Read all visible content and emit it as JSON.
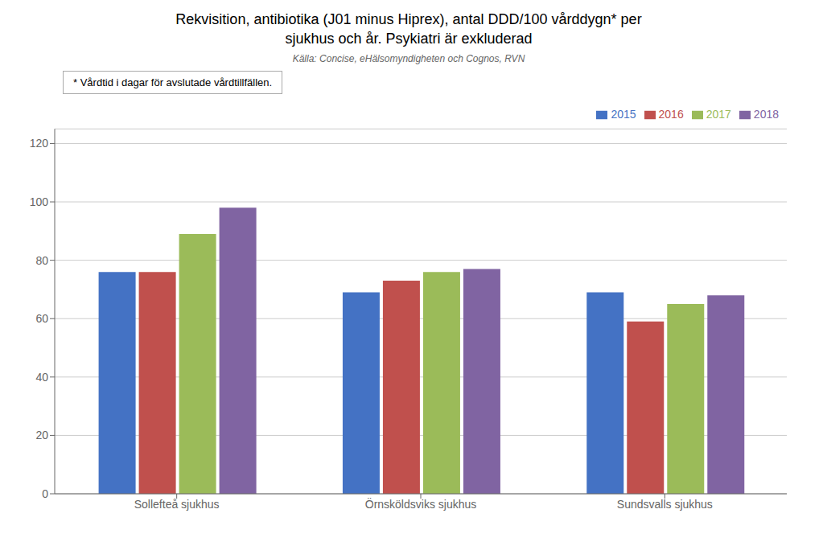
{
  "chart_data": {
    "type": "bar",
    "title": "Rekvisition, antibiotika (J01 minus Hiprex), antal DDD/100 vårddygn* per\nsjukhus och år. Psykiatri är exkluderad",
    "subtitle": "Källa: Concise, eHälsomyndigheten och Cognos, RVN",
    "annotations": [
      "* Vårdtid i dagar för avslutade vårdtillfällen."
    ],
    "categories": [
      "Sollefteå sjukhus",
      "Örnsköldsviks sjukhus",
      "Sundsvalls sjukhus"
    ],
    "series": [
      {
        "name": "2015",
        "color": "#4472C4",
        "values": [
          76,
          69,
          69
        ]
      },
      {
        "name": "2016",
        "color": "#C0504D",
        "values": [
          76,
          73,
          59
        ]
      },
      {
        "name": "2017",
        "color": "#9BBB59",
        "values": [
          89,
          76,
          65
        ]
      },
      {
        "name": "2018",
        "color": "#8064A2",
        "values": [
          98,
          77,
          68
        ]
      }
    ],
    "ylim": [
      0,
      125
    ],
    "yticks": [
      0,
      20,
      40,
      60,
      80,
      100,
      120
    ],
    "grid": true,
    "legend": "top"
  }
}
